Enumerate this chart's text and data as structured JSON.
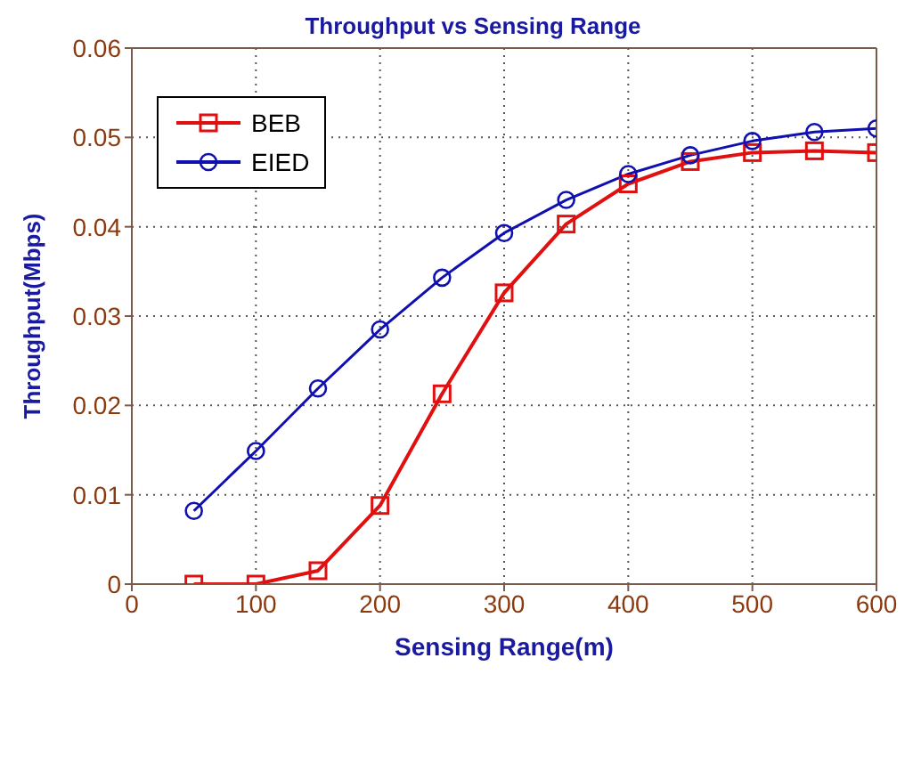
{
  "chart_data": {
    "type": "line",
    "title": "Throughput vs Sensing Range",
    "xlabel": "Sensing Range(m)",
    "ylabel": "Throughput(Mbps)",
    "x": [
      50,
      100,
      150,
      200,
      250,
      300,
      350,
      400,
      450,
      500,
      550,
      600
    ],
    "series": [
      {
        "name": "BEB",
        "color": "#e01010",
        "marker": "square",
        "values": [
          0,
          0,
          0.0015,
          0.0088,
          0.0213,
          0.0326,
          0.0403,
          0.0448,
          0.0473,
          0.0483,
          0.0485,
          0.0483
        ]
      },
      {
        "name": "EIED",
        "color": "#1010b0",
        "marker": "circle",
        "values": [
          0.0082,
          0.0149,
          0.0219,
          0.0285,
          0.0343,
          0.0393,
          0.043,
          0.0459,
          0.048,
          0.0496,
          0.0506,
          0.051
        ]
      }
    ],
    "xlim": [
      0,
      600
    ],
    "xticks": [
      0,
      100,
      200,
      300,
      400,
      500,
      600
    ],
    "ylim": [
      0,
      0.06
    ],
    "yticks": [
      0,
      0.01,
      0.02,
      0.03,
      0.04,
      0.05,
      0.06
    ],
    "grid": true,
    "legend": "top left",
    "line_style": "solid"
  }
}
